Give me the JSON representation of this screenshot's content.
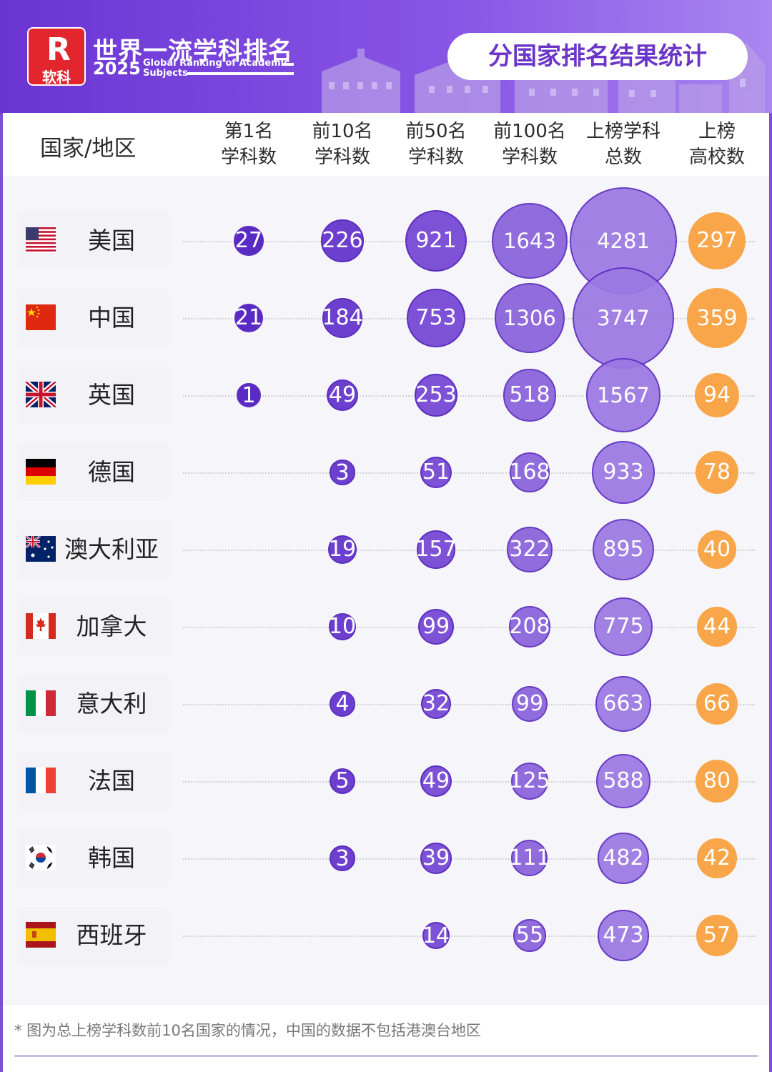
{
  "header": {
    "logo_glyph": "R",
    "logo_sub": "软科",
    "brand_title": "世界一流学科排名",
    "brand_year": "2025",
    "brand_en": "Global Ranking of Academic Subjects",
    "page_title": "分国家排名结果统计"
  },
  "columns": {
    "country": "国家/地区",
    "rank1": "第1名\n学科数",
    "top10": "前10名\n学科数",
    "top50": "前50名\n学科数",
    "top100": "前100名\n学科数",
    "total": "上榜学科\n总数",
    "univ": "上榜\n高校数"
  },
  "colors": {
    "rank1": "#5a2bc4",
    "top10": "#6d3fce",
    "top50": "#7d52d6",
    "top100": "#8a62db",
    "total": "#9b79e2",
    "univ": "#f9a64a",
    "border": "#5d2fc0"
  },
  "chart_data": {
    "type": "bubble-table",
    "series": [
      {
        "key": "rank1",
        "name": "第1名学科数"
      },
      {
        "key": "top10",
        "name": "前10名学科数"
      },
      {
        "key": "top50",
        "name": "前50名学科数"
      },
      {
        "key": "top100",
        "name": "前100名学科数"
      },
      {
        "key": "total",
        "name": "上榜学科总数"
      },
      {
        "key": "univ",
        "name": "上榜高校数"
      }
    ],
    "rows": [
      {
        "country": "美国",
        "flag": "us-flag",
        "rank1": 27,
        "top10": 226,
        "top50": 921,
        "top100": 1643,
        "total": 4281,
        "univ": 297
      },
      {
        "country": "中国",
        "flag": "cn-flag",
        "rank1": 21,
        "top10": 184,
        "top50": 753,
        "top100": 1306,
        "total": 3747,
        "univ": 359
      },
      {
        "country": "英国",
        "flag": "uk-flag",
        "rank1": 1,
        "top10": 49,
        "top50": 253,
        "top100": 518,
        "total": 1567,
        "univ": 94
      },
      {
        "country": "德国",
        "flag": "de-flag",
        "rank1": null,
        "top10": 3,
        "top50": 51,
        "top100": 168,
        "total": 933,
        "univ": 78
      },
      {
        "country": "澳大利亚",
        "flag": "au-flag",
        "rank1": null,
        "top10": 19,
        "top50": 157,
        "top100": 322,
        "total": 895,
        "univ": 40
      },
      {
        "country": "加拿大",
        "flag": "ca-flag",
        "rank1": null,
        "top10": 10,
        "top50": 99,
        "top100": 208,
        "total": 775,
        "univ": 44
      },
      {
        "country": "意大利",
        "flag": "it-flag",
        "rank1": null,
        "top10": 4,
        "top50": 32,
        "top100": 99,
        "total": 663,
        "univ": 66
      },
      {
        "country": "法国",
        "flag": "fr-flag",
        "rank1": null,
        "top10": 5,
        "top50": 49,
        "top100": 125,
        "total": 588,
        "univ": 80
      },
      {
        "country": "韩国",
        "flag": "kr-flag",
        "rank1": null,
        "top10": 3,
        "top50": 39,
        "top100": 111,
        "total": 482,
        "univ": 42
      },
      {
        "country": "西班牙",
        "flag": "es-flag",
        "rank1": null,
        "top10": null,
        "top50": 14,
        "top100": 55,
        "total": 473,
        "univ": 57
      }
    ]
  },
  "footnote": "* 图为总上榜学科数前10名国家的情况，中国的数据不包括港澳台地区"
}
